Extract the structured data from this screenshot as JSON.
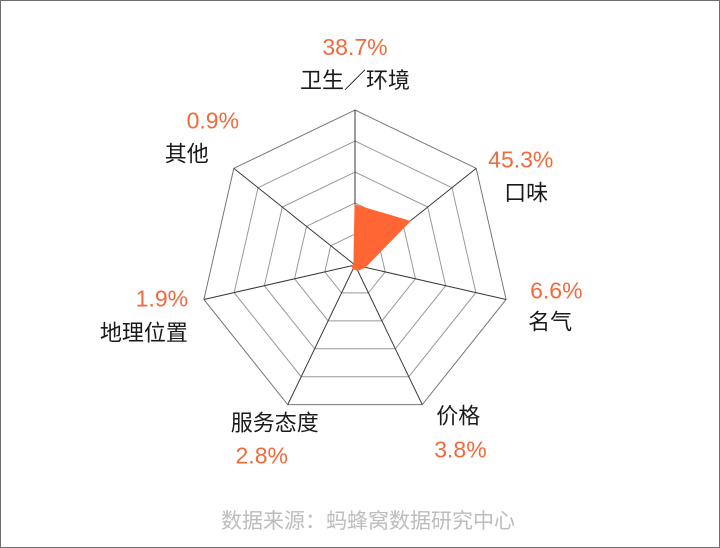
{
  "chart_data": {
    "type": "radar",
    "categories": [
      "卫生／环境",
      "口味",
      "名气",
      "价格",
      "服务态度",
      "地理位置",
      "其他"
    ],
    "values": [
      38.7,
      45.3,
      6.6,
      3.8,
      2.8,
      1.9,
      0.9
    ],
    "value_labels": [
      "38.7%",
      "45.3%",
      "6.6%",
      "3.8%",
      "2.8%",
      "1.9%",
      "0.9%"
    ],
    "rmax": 100,
    "rings": 5,
    "grid": true,
    "colors": {
      "fill": "#ff6633",
      "value_text": "#f26a3c",
      "grid": "#999999",
      "spoke": "#3a3a3a"
    },
    "source_note": "数据来源：蚂蜂窝数据研究中心"
  }
}
